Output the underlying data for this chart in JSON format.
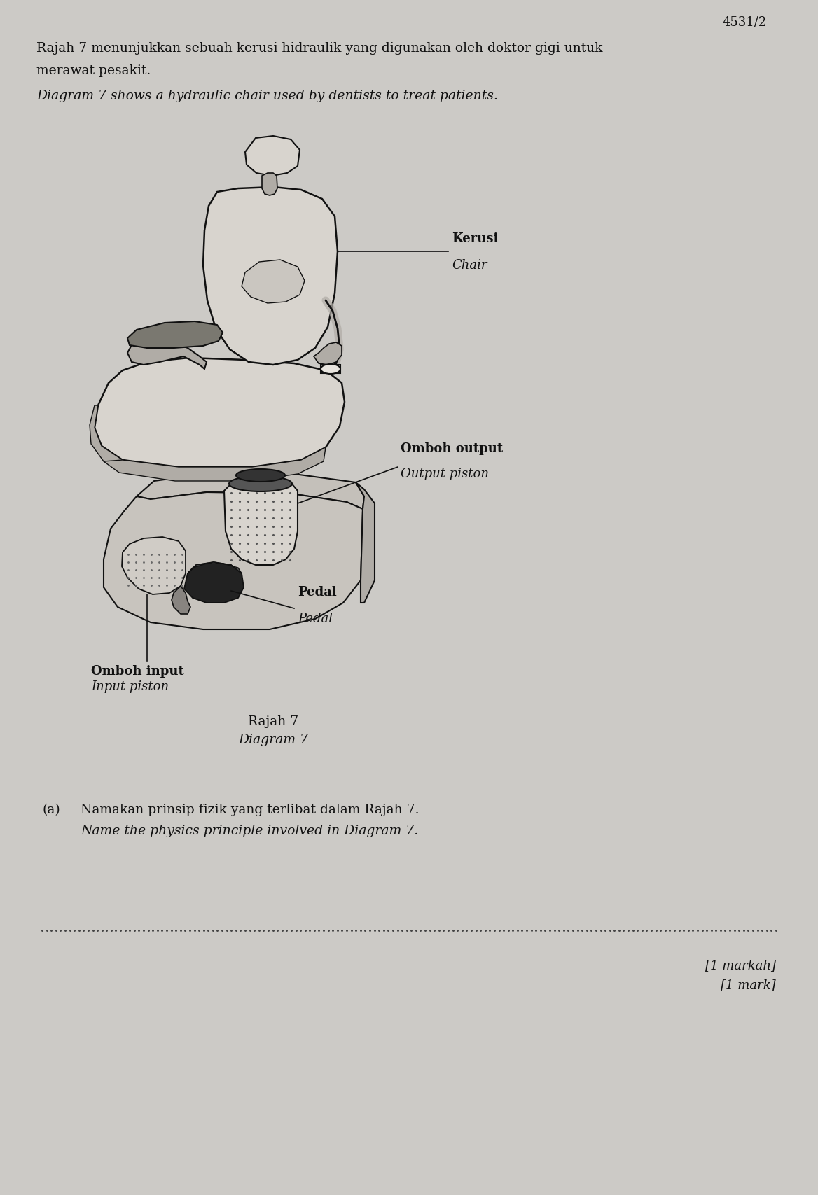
{
  "bg_color": "#cccac6",
  "page_color": "#cccac6",
  "page_number": "4531/2",
  "para1_malay": "Rajah 7 menunjukkan sebuah kerusi hidraulik yang digunakan oleh doktor gigi untuk",
  "para1_malay2": "merawat pesakit.",
  "para1_english": "Diagram 7 shows a hydraulic chair used by dentists to treat patients.",
  "label_chair_malay": "Kerusi",
  "label_chair_english": "Chair",
  "label_output_malay": "Omboh output",
  "label_output_english": "Output piston",
  "label_pedal_malay": "Pedal",
  "label_pedal_english": "Pedal",
  "label_input_malay": "Omboh input",
  "label_input_english": "Input piston",
  "diagram_label_malay": "Rajah 7",
  "diagram_label_english": "Diagram 7",
  "question_label": "(a)",
  "question_malay": "Namakan prinsip fizik yang terlibat dalam Rajah 7.",
  "question_english": "Name the physics principle involved in Diagram 7.",
  "marks_malay": "[1 markah]",
  "marks_english": "[1 mark]",
  "text_color": "#111111",
  "line_color": "#111111",
  "chair_fill": "#d8d4ce",
  "chair_dark": "#b0aca6",
  "chair_darker": "#888480",
  "chair_shadow": "#a0a09a"
}
